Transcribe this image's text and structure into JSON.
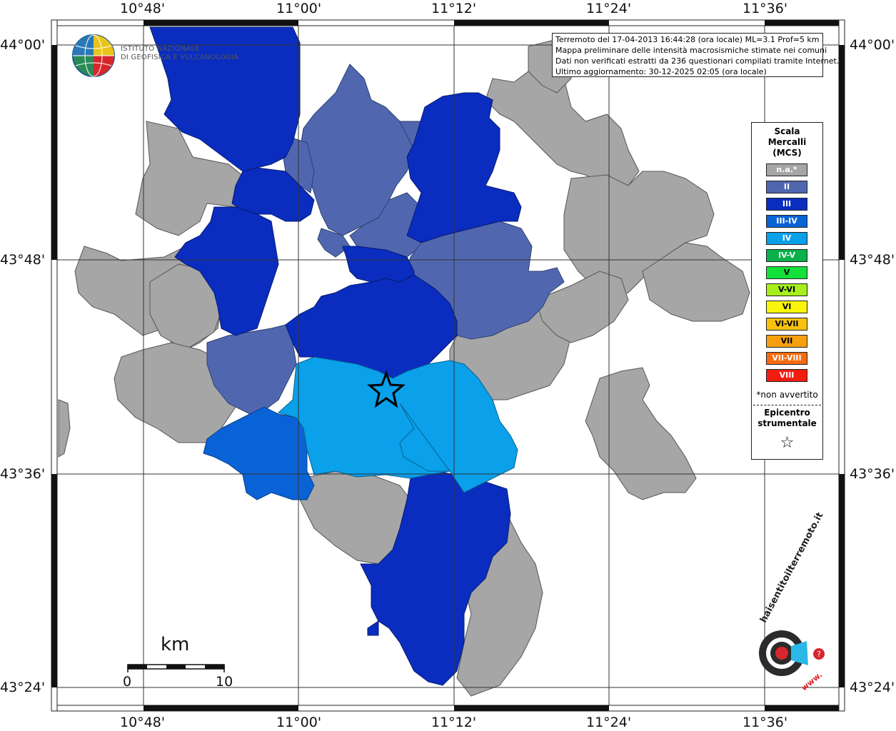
{
  "map": {
    "lon_labels": [
      "10°48'",
      "11°00'",
      "11°12'",
      "11°24'",
      "11°36'"
    ],
    "lat_labels": [
      "44°00'",
      "43°48'",
      "43°36'",
      "43°24'"
    ]
  },
  "info_box": {
    "line1": "Terremoto del 17-04-2013 16:44:28 (ora locale) ML=3.1 Prof=5 km",
    "line2": "Mappa preliminare delle intensità macrosismiche stimate nei comuni",
    "line3": "Dati non verificati estratti da 236 questionari compilati tramite Internet.",
    "line4": "Ultimo aggiornamento: 30-12-2025 02:05 (ora locale)"
  },
  "logo": {
    "line1": "ISTITUTO NAZIONALE",
    "line2": "DI GEOFISICA E VULCANOLOGIA"
  },
  "legend": {
    "title_lines": [
      "Scala",
      "Mercalli",
      "(MCS)"
    ],
    "items": [
      {
        "label": "n.a.*",
        "color": "#a6a6a6",
        "text_color": "#ffffff"
      },
      {
        "label": "II",
        "color": "#5067b0",
        "text_color": "#ffffff"
      },
      {
        "label": "III",
        "color": "#0a2dbf",
        "text_color": "#ffffff"
      },
      {
        "label": "III-IV",
        "color": "#0a63d6",
        "text_color": "#ffffff"
      },
      {
        "label": "IV",
        "color": "#0aa0ea",
        "text_color": "#ffffff"
      },
      {
        "label": "IV-V",
        "color": "#0ab04a",
        "text_color": "#ffffff"
      },
      {
        "label": "V",
        "color": "#14e03a",
        "text_color": "#000000"
      },
      {
        "label": "V-VI",
        "color": "#a6ef1a",
        "text_color": "#000000"
      },
      {
        "label": "VI",
        "color": "#fbf50c",
        "text_color": "#000000"
      },
      {
        "label": "VI-VII",
        "color": "#f7c10e",
        "text_color": "#000000"
      },
      {
        "label": "VII",
        "color": "#f6a010",
        "text_color": "#000000"
      },
      {
        "label": "VII-VIII",
        "color": "#f66a10",
        "text_color": "#ffffff"
      },
      {
        "label": "VIII",
        "color": "#f21d10",
        "text_color": "#ffffff"
      }
    ],
    "note": "*non avvertito",
    "epicenter_lines": [
      "Epicentro",
      "strumentale"
    ],
    "epicenter_symbol": "☆"
  },
  "scale_bar": {
    "unit": "km",
    "min_label": "0",
    "max_label": "10"
  },
  "haisentito": {
    "text": "haisentitoilterremoto.it",
    "url_text": "www."
  }
}
